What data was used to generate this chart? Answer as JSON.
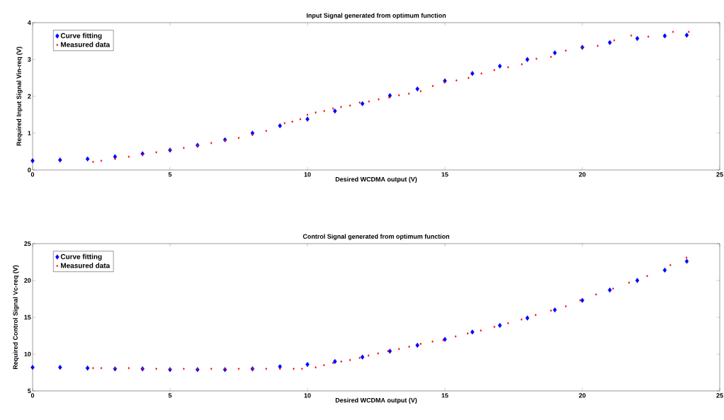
{
  "chart_data": [
    {
      "type": "scatter",
      "title": "Input Signal generated from optimum function",
      "xlabel": "Desired WCDMA output (V)",
      "ylabel": "Required Input Signal Vin-req (V)",
      "xlim": [
        0,
        25
      ],
      "xticks": [
        0,
        5,
        10,
        15,
        20,
        25
      ],
      "ylim": [
        0,
        4
      ],
      "yticks": [
        0,
        1,
        2,
        3,
        4
      ],
      "legend": "top left",
      "marker": "diamond",
      "series": [
        {
          "name": "Curve fitting",
          "color": "#0000ff",
          "x": [
            0,
            1,
            2,
            3,
            4,
            5,
            6,
            7,
            8,
            9,
            10,
            11,
            12,
            13,
            14,
            15,
            16,
            17,
            18,
            19,
            20,
            21,
            22,
            23,
            23.8
          ],
          "values": [
            0.25,
            0.27,
            0.3,
            0.36,
            0.44,
            0.54,
            0.67,
            0.82,
            1.0,
            1.2,
            1.38,
            1.6,
            1.8,
            2.02,
            2.2,
            2.42,
            2.62,
            2.82,
            3.0,
            3.18,
            3.33,
            3.46,
            3.57,
            3.64,
            3.66
          ]
        },
        {
          "name": "Measured data",
          "color": "#ff0000",
          "x": [
            2.2,
            2.5,
            3,
            3.5,
            4,
            4.5,
            5,
            5.5,
            6,
            6.5,
            7,
            7.5,
            8,
            8.5,
            9.17,
            9.45,
            9.74,
            10.0,
            10.3,
            10.61,
            10.93,
            11.22,
            11.55,
            11.9,
            12.24,
            12.59,
            12.97,
            13.33,
            13.69,
            14.12,
            14.56,
            14.98,
            15.42,
            15.86,
            16.33,
            16.8,
            17.3,
            17.8,
            18.33,
            18.86,
            19.4,
            19.97,
            20.56,
            21.16,
            21.78,
            22.4,
            23.3,
            23.87
          ],
          "values": [
            0.22,
            0.25,
            0.3,
            0.36,
            0.42,
            0.48,
            0.55,
            0.6,
            0.66,
            0.73,
            0.8,
            0.87,
            0.95,
            1.06,
            1.27,
            1.31,
            1.38,
            1.5,
            1.56,
            1.6,
            1.67,
            1.71,
            1.75,
            1.83,
            1.86,
            1.92,
            1.97,
            2.03,
            2.07,
            2.14,
            2.28,
            2.38,
            2.43,
            2.5,
            2.62,
            2.71,
            2.79,
            2.87,
            3.02,
            3.07,
            3.24,
            3.32,
            3.37,
            3.52,
            3.65,
            3.62,
            3.75,
            3.75
          ]
        }
      ]
    },
    {
      "type": "scatter",
      "title": "Control Signal generated from optimum function",
      "xlabel": "Desired WCDMA output (V)",
      "ylabel": "Required Control Signal Vc-req (V)",
      "xlim": [
        0,
        25
      ],
      "xticks": [
        0,
        5,
        10,
        15,
        20,
        25
      ],
      "ylim": [
        5,
        25
      ],
      "yticks": [
        5,
        10,
        15,
        20,
        25
      ],
      "legend": "top left",
      "marker": "diamond",
      "series": [
        {
          "name": "Curve fitting",
          "color": "#0000ff",
          "x": [
            0,
            1,
            2,
            3,
            4,
            5,
            6,
            7,
            8,
            9,
            10,
            11,
            12,
            13,
            14,
            15,
            16,
            17,
            18,
            19,
            20,
            21,
            22,
            23,
            23.8
          ],
          "values": [
            8.2,
            8.2,
            8.1,
            8.0,
            8.0,
            7.9,
            7.9,
            7.9,
            8.0,
            8.3,
            8.6,
            9.0,
            9.6,
            10.4,
            11.2,
            12.0,
            13.0,
            13.9,
            14.9,
            16.0,
            17.3,
            18.7,
            20.0,
            21.4,
            22.6
          ]
        },
        {
          "name": "Measured data",
          "color": "#ff0000",
          "x": [
            2.2,
            2.5,
            3,
            3.5,
            4,
            4.5,
            5,
            5.5,
            6,
            6.5,
            7,
            7.5,
            8,
            8.5,
            9,
            9.5,
            9.8,
            10.3,
            10.6,
            10.93,
            11.23,
            11.55,
            11.9,
            12.22,
            12.57,
            12.93,
            13.33,
            13.7,
            14.12,
            14.55,
            14.94,
            15.39,
            15.83,
            16.31,
            16.8,
            17.3,
            17.79,
            18.3,
            18.86,
            19.4,
            19.92,
            20.5,
            21.12,
            21.7,
            22.36,
            23.2,
            23.79
          ],
          "values": [
            8.1,
            8.1,
            8.1,
            8.1,
            8.0,
            8.0,
            8.0,
            8.0,
            8.0,
            8.0,
            8.0,
            8.0,
            8.0,
            8.0,
            8.0,
            8.0,
            8.0,
            8.2,
            8.5,
            8.8,
            9.0,
            9.2,
            9.5,
            9.8,
            10.1,
            10.4,
            10.7,
            11.0,
            11.4,
            11.7,
            11.9,
            12.4,
            12.8,
            13.2,
            13.7,
            14.2,
            14.7,
            15.3,
            15.9,
            16.5,
            17.3,
            18.1,
            18.9,
            19.7,
            20.6,
            22.1,
            23.1
          ]
        }
      ]
    }
  ]
}
